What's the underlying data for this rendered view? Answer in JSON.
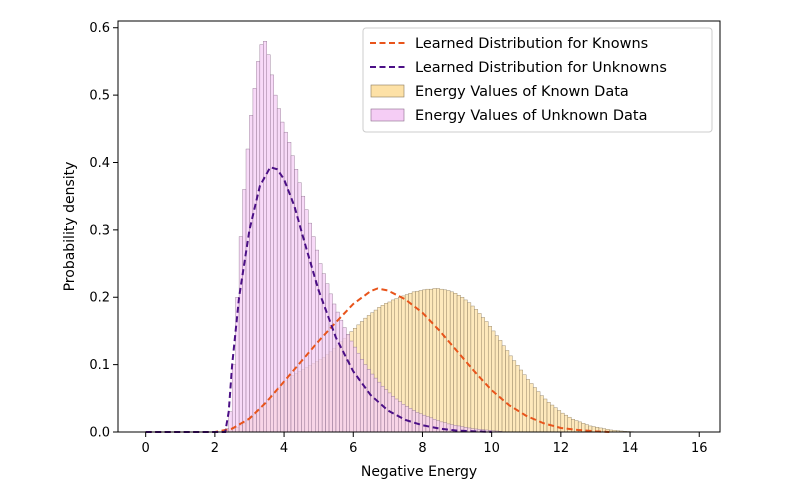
{
  "chart_data": {
    "type": "histogram-with-density",
    "xlabel": "Negative Energy",
    "ylabel": "Probability density",
    "xlim": [
      -0.8,
      16.6
    ],
    "ylim": [
      0,
      0.61
    ],
    "xticks": [
      0,
      2,
      4,
      6,
      8,
      10,
      12,
      14,
      16
    ],
    "yticks": [
      0.0,
      0.1,
      0.2,
      0.3,
      0.4,
      0.5,
      0.6
    ],
    "grid": false,
    "legend_position": "top-right",
    "legend": [
      {
        "label": "Learned Distribution for Knowns",
        "kind": "dashed-line",
        "color": "#e8541b"
      },
      {
        "label": "Learned Distribution for Unknowns",
        "kind": "dashed-line",
        "color": "#4b0f86"
      },
      {
        "label": "Energy Values of Known Data",
        "kind": "patch",
        "color": "#fde1a6"
      },
      {
        "label": "Energy Values of Unknown Data",
        "kind": "patch",
        "color": "#f5cdf5"
      }
    ],
    "series": [
      {
        "name": "Learned Distribution for Knowns",
        "kind": "line",
        "style": "dashed",
        "color": "#e8541b",
        "x": [
          0,
          1,
          2,
          2.5,
          3,
          3.5,
          4,
          4.5,
          5,
          5.5,
          6,
          6.5,
          6.7,
          7,
          7.5,
          8,
          8.5,
          9,
          9.5,
          10,
          10.5,
          11,
          11.5,
          12,
          12.5,
          13,
          13.4
        ],
        "y": [
          0,
          0,
          0,
          0.005,
          0.02,
          0.045,
          0.075,
          0.105,
          0.135,
          0.163,
          0.19,
          0.209,
          0.213,
          0.21,
          0.197,
          0.177,
          0.15,
          0.12,
          0.09,
          0.062,
          0.04,
          0.024,
          0.013,
          0.006,
          0.003,
          0.001,
          0
        ]
      },
      {
        "name": "Learned Distribution for Unknowns",
        "kind": "line",
        "style": "dashed",
        "color": "#4b0f86",
        "x": [
          0,
          1,
          2,
          2.3,
          2.4,
          2.5,
          2.7,
          3,
          3.3,
          3.6,
          3.8,
          4,
          4.3,
          4.6,
          5,
          5.5,
          6,
          6.5,
          7,
          7.5,
          8,
          8.5,
          9,
          9.5,
          10
        ],
        "y": [
          0,
          0,
          0,
          0,
          0.03,
          0.1,
          0.2,
          0.3,
          0.365,
          0.393,
          0.39,
          0.375,
          0.335,
          0.28,
          0.21,
          0.14,
          0.09,
          0.055,
          0.032,
          0.018,
          0.01,
          0.005,
          0.002,
          0.001,
          0
        ]
      },
      {
        "name": "Energy Values of Known Data",
        "kind": "histogram",
        "color": "#fde1a6",
        "edge": "#8a7a5e",
        "bins": {
          "start": 2.3,
          "width": 0.1
        },
        "values": [
          0.002,
          0.003,
          0.005,
          0.007,
          0.01,
          0.013,
          0.017,
          0.021,
          0.026,
          0.031,
          0.037,
          0.043,
          0.049,
          0.055,
          0.061,
          0.066,
          0.071,
          0.076,
          0.08,
          0.084,
          0.087,
          0.09,
          0.093,
          0.096,
          0.099,
          0.102,
          0.105,
          0.108,
          0.111,
          0.115,
          0.119,
          0.124,
          0.129,
          0.134,
          0.139,
          0.144,
          0.149,
          0.154,
          0.159,
          0.164,
          0.169,
          0.173,
          0.177,
          0.181,
          0.185,
          0.188,
          0.191,
          0.193,
          0.196,
          0.198,
          0.2,
          0.202,
          0.204,
          0.206,
          0.208,
          0.209,
          0.21,
          0.211,
          0.212,
          0.212,
          0.213,
          0.213,
          0.212,
          0.211,
          0.21,
          0.208,
          0.206,
          0.203,
          0.2,
          0.196,
          0.192,
          0.187,
          0.182,
          0.176,
          0.17,
          0.164,
          0.157,
          0.15,
          0.143,
          0.136,
          0.128,
          0.121,
          0.113,
          0.106,
          0.099,
          0.092,
          0.085,
          0.078,
          0.072,
          0.066,
          0.06,
          0.054,
          0.049,
          0.044,
          0.04,
          0.036,
          0.032,
          0.028,
          0.025,
          0.022,
          0.019,
          0.017,
          0.015,
          0.013,
          0.011,
          0.009,
          0.008,
          0.007,
          0.006,
          0.005,
          0.004,
          0.003,
          0.0025,
          0.002,
          0.0015,
          0.001,
          0.0008,
          0.0006,
          0.0004
        ]
      },
      {
        "name": "Energy Values of Unknown Data",
        "kind": "histogram",
        "color": "#f5cdf5",
        "edge": "#8a6d8a",
        "bins": {
          "start": 2.3,
          "width": 0.1
        },
        "values": [
          0.005,
          0.03,
          0.1,
          0.2,
          0.29,
          0.36,
          0.42,
          0.47,
          0.51,
          0.55,
          0.575,
          0.58,
          0.56,
          0.53,
          0.5,
          0.48,
          0.46,
          0.445,
          0.43,
          0.41,
          0.39,
          0.37,
          0.35,
          0.33,
          0.31,
          0.29,
          0.27,
          0.25,
          0.235,
          0.22,
          0.205,
          0.19,
          0.178,
          0.166,
          0.155,
          0.145,
          0.135,
          0.126,
          0.117,
          0.108,
          0.1,
          0.093,
          0.086,
          0.08,
          0.074,
          0.068,
          0.063,
          0.058,
          0.053,
          0.049,
          0.045,
          0.041,
          0.038,
          0.035,
          0.032,
          0.029,
          0.027,
          0.025,
          0.023,
          0.021,
          0.019,
          0.017,
          0.015,
          0.014,
          0.012,
          0.011,
          0.01,
          0.009,
          0.008,
          0.007,
          0.006,
          0.005,
          0.0045,
          0.004,
          0.0035,
          0.003,
          0.0025,
          0.002,
          0.0015,
          0.001
        ]
      }
    ]
  }
}
